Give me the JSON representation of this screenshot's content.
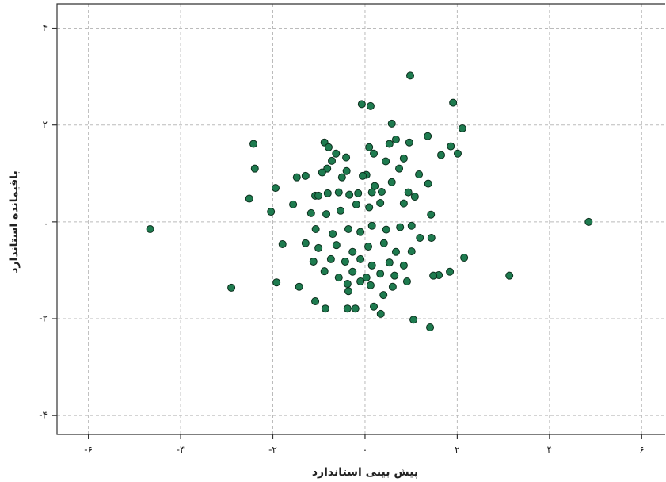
{
  "chart_data": {
    "type": "scatter",
    "x_label": "پیش بینی استاندارد",
    "y_label": "باقیمانده استاندارد",
    "color": "#1e7b4f",
    "grid": true,
    "xlim": [
      -6.68,
      6.51
    ],
    "ylim": [
      -4.39,
      4.5
    ],
    "xticks": [
      {
        "value": -6,
        "label": "-۶"
      },
      {
        "value": -4,
        "label": "-۴"
      },
      {
        "value": -2,
        "label": "-۲"
      },
      {
        "value": 0,
        "label": "۰"
      },
      {
        "value": 2,
        "label": "۲"
      },
      {
        "value": 4,
        "label": "۴"
      },
      {
        "value": 6,
        "label": "۶"
      }
    ],
    "yticks": [
      {
        "value": -4,
        "label": "-۴"
      },
      {
        "value": -2,
        "label": "-۲"
      },
      {
        "value": 0,
        "label": "."
      },
      {
        "value": 2,
        "label": "۲"
      },
      {
        "value": 4,
        "label": "۴"
      }
    ],
    "x": [
      -4.66,
      -2.9,
      4.85,
      3.13,
      0.98,
      1.91,
      2.11,
      -0.07,
      0.12,
      0.58,
      -2.42,
      -2.39,
      -2.51,
      -2.04,
      -1.94,
      -1.92,
      -1.43,
      -1.79,
      -1.08,
      -0.86,
      -0.38,
      -0.21,
      0.19,
      0.34,
      0.4,
      1.05,
      1.41,
      2.15,
      1.84,
      1.6,
      1.48,
      1.44,
      1.43,
      1.37,
      1.36,
      1.65,
      1.86,
      2.01,
      0.96,
      0.67,
      0.53,
      0.45,
      0.09,
      0.19,
      0.03,
      0.21,
      -0.88,
      -0.79,
      -0.63,
      -0.72,
      -0.82,
      -0.93,
      -0.41,
      -0.5,
      -0.4,
      -0.05,
      -1.48,
      -1.29,
      -1.08,
      -1.01,
      -0.81,
      -0.57,
      -0.34,
      -0.15,
      0.15,
      0.36,
      0.58,
      0.74,
      0.94,
      1.08,
      1.17,
      0.84,
      -1.56,
      -1.17,
      -0.84,
      -0.53,
      -0.19,
      0.09,
      0.33,
      0.84,
      -1.07,
      -0.7,
      -0.36,
      -0.1,
      0.15,
      0.46,
      0.76,
      1.01,
      1.19,
      -1.29,
      -1.01,
      -0.62,
      -0.27,
      0.07,
      0.41,
      0.67,
      1.01,
      -1.12,
      -0.74,
      -0.43,
      -0.1,
      0.15,
      0.53,
      0.84,
      -0.88,
      -0.57,
      -0.27,
      0.03,
      0.33,
      0.64,
      0.91,
      -0.38,
      -0.1,
      0.12,
      -0.36,
      0.6
    ],
    "y": [
      -0.15,
      -1.36,
      0,
      -1.11,
      3.02,
      2.46,
      1.93,
      2.43,
      2.39,
      2.03,
      1.61,
      1.1,
      0.48,
      0.21,
      0.7,
      -1.25,
      -1.34,
      -0.46,
      -1.64,
      -1.79,
      -1.79,
      -1.79,
      -1.75,
      -1.9,
      -1.51,
      -2.02,
      -2.18,
      -0.74,
      -1.03,
      -1.1,
      -1.11,
      -0.33,
      0.15,
      0.79,
      1.77,
      1.38,
      1.56,
      1.41,
      1.64,
      1.7,
      1.61,
      1.25,
      1.54,
      1.41,
      0.97,
      0.74,
      1.64,
      1.54,
      1.41,
      1.26,
      1.1,
      1.02,
      1.33,
      0.92,
      1.05,
      0.95,
      0.92,
      0.95,
      0.54,
      0.54,
      0.59,
      0.61,
      0.56,
      0.59,
      0.61,
      0.62,
      0.82,
      1.1,
      0.61,
      0.52,
      0.98,
      1.31,
      0.36,
      0.18,
      0.16,
      0.23,
      0.36,
      0.3,
      0.39,
      0.38,
      -0.15,
      -0.25,
      -0.15,
      -0.21,
      -0.08,
      -0.16,
      -0.11,
      -0.08,
      -0.33,
      -0.44,
      -0.54,
      -0.48,
      -0.62,
      -0.51,
      -0.44,
      -0.62,
      -0.61,
      -0.82,
      -0.77,
      -0.82,
      -0.77,
      -0.9,
      -0.84,
      -0.9,
      -1.02,
      -1.15,
      -1.03,
      -1.15,
      -1.07,
      -1.11,
      -1.23,
      -1.28,
      -1.23,
      -1.31,
      -1.43,
      -1.34
    ]
  }
}
